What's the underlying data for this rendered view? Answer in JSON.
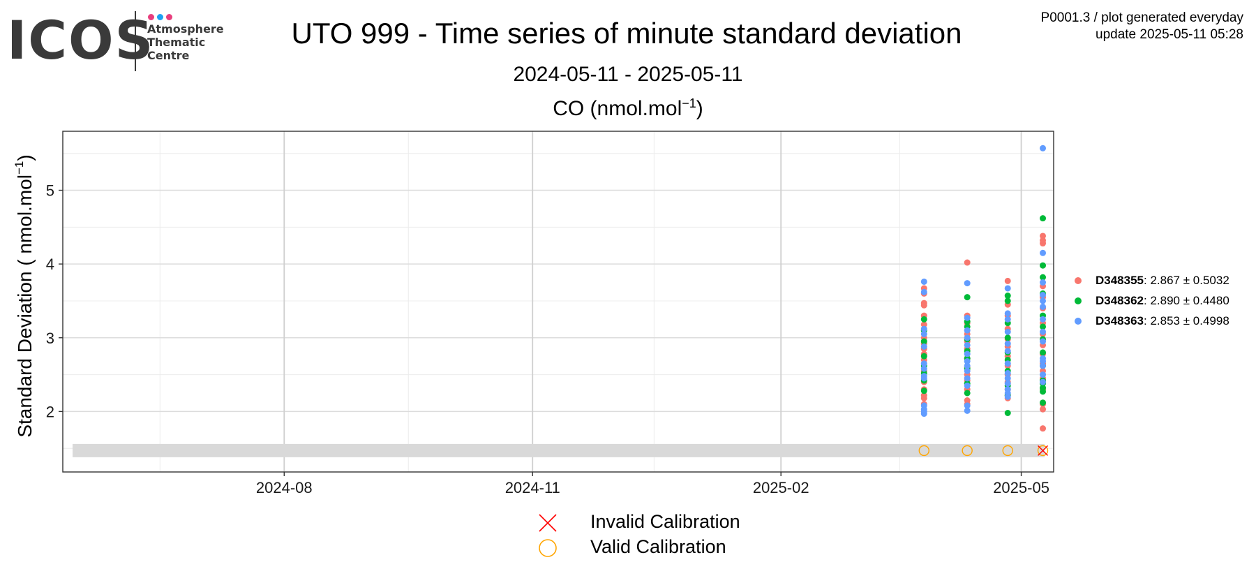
{
  "logo": {
    "wordmark": "ICOS",
    "lines": [
      "Atmosphere",
      "Thematic",
      "Centre"
    ],
    "dot_colors": [
      "#e83e7d",
      "#1da1f2",
      "#e83e7d"
    ]
  },
  "header": {
    "title": "UTO 999 - Time series of minute standard deviation",
    "subtitle": "2024-05-11 - 2025-05-11",
    "meta_line1": "P0001.3 / plot generated everyday",
    "meta_line2": "update  2025-05-11 05:28"
  },
  "chart_data": {
    "type": "scatter",
    "title_text": "CO (nmol.mol",
    "title_sup": "−1",
    "title_close": ")",
    "ylabel": "Standard Deviation ( nmol.mol",
    "ylabel_sup": "−1",
    "ylabel_close": ")",
    "xlim": [
      "2024-05-11",
      "2025-05-13"
    ],
    "ylim": [
      1.18,
      5.8
    ],
    "grid": true,
    "legend_placement": "right",
    "x_ticks": [
      "2024-08",
      "2024-11",
      "2025-02",
      "2025-05"
    ],
    "x_tick_dates": [
      "2024-08-01",
      "2024-11-01",
      "2025-02-01",
      "2025-05-01"
    ],
    "y_ticks": [
      2,
      3,
      4,
      5
    ],
    "calibration_band": [
      1.38,
      1.56
    ],
    "series": [
      {
        "name": "D348355",
        "stat": ": 2.867 ± 0.5032",
        "color": "#f8766d",
        "points": [
          [
            "2025-03-26",
            3.67
          ],
          [
            "2025-03-26",
            3.6
          ],
          [
            "2025-03-26",
            3.47
          ],
          [
            "2025-03-26",
            3.44
          ],
          [
            "2025-03-26",
            3.3
          ],
          [
            "2025-03-26",
            3.18
          ],
          [
            "2025-03-26",
            3.0
          ],
          [
            "2025-03-26",
            2.92
          ],
          [
            "2025-03-26",
            2.85
          ],
          [
            "2025-03-26",
            2.78
          ],
          [
            "2025-03-26",
            2.7
          ],
          [
            "2025-03-26",
            2.55
          ],
          [
            "2025-03-26",
            2.4
          ],
          [
            "2025-03-26",
            2.3
          ],
          [
            "2025-03-26",
            2.22
          ],
          [
            "2025-03-26",
            2.18
          ],
          [
            "2025-03-26",
            2.1
          ],
          [
            "2025-04-11",
            4.02
          ],
          [
            "2025-04-11",
            3.3
          ],
          [
            "2025-04-11",
            3.2
          ],
          [
            "2025-04-11",
            3.05
          ],
          [
            "2025-04-11",
            2.95
          ],
          [
            "2025-04-11",
            2.85
          ],
          [
            "2025-04-11",
            2.72
          ],
          [
            "2025-04-11",
            2.6
          ],
          [
            "2025-04-11",
            2.5
          ],
          [
            "2025-04-11",
            2.42
          ],
          [
            "2025-04-11",
            2.3
          ],
          [
            "2025-04-11",
            2.15
          ],
          [
            "2025-04-11",
            2.1
          ],
          [
            "2025-04-26",
            3.77
          ],
          [
            "2025-04-26",
            3.45
          ],
          [
            "2025-04-26",
            3.3
          ],
          [
            "2025-04-26",
            3.12
          ],
          [
            "2025-04-26",
            2.98
          ],
          [
            "2025-04-26",
            2.88
          ],
          [
            "2025-04-26",
            2.75
          ],
          [
            "2025-04-26",
            2.62
          ],
          [
            "2025-04-26",
            2.5
          ],
          [
            "2025-04-26",
            2.4
          ],
          [
            "2025-04-26",
            2.3
          ],
          [
            "2025-04-26",
            2.22
          ],
          [
            "2025-04-26",
            2.18
          ],
          [
            "2025-05-09",
            4.38
          ],
          [
            "2025-05-09",
            4.32
          ],
          [
            "2025-05-09",
            4.28
          ],
          [
            "2025-05-09",
            3.7
          ],
          [
            "2025-05-09",
            3.55
          ],
          [
            "2025-05-09",
            3.4
          ],
          [
            "2025-05-09",
            3.2
          ],
          [
            "2025-05-09",
            3.05
          ],
          [
            "2025-05-09",
            2.9
          ],
          [
            "2025-05-09",
            2.78
          ],
          [
            "2025-05-09",
            2.65
          ],
          [
            "2025-05-09",
            2.55
          ],
          [
            "2025-05-09",
            2.45
          ],
          [
            "2025-05-09",
            2.3
          ],
          [
            "2025-05-09",
            2.1
          ],
          [
            "2025-05-09",
            2.03
          ],
          [
            "2025-05-09",
            1.77
          ]
        ]
      },
      {
        "name": "D348362",
        "stat": ": 2.890 ± 0.4480",
        "color": "#00ba38",
        "points": [
          [
            "2025-03-26",
            3.25
          ],
          [
            "2025-03-26",
            3.1
          ],
          [
            "2025-03-26",
            2.95
          ],
          [
            "2025-03-26",
            2.75
          ],
          [
            "2025-03-26",
            2.62
          ],
          [
            "2025-03-26",
            2.52
          ],
          [
            "2025-03-26",
            2.42
          ],
          [
            "2025-03-26",
            2.28
          ],
          [
            "2025-04-11",
            3.55
          ],
          [
            "2025-04-11",
            3.22
          ],
          [
            "2025-04-11",
            3.15
          ],
          [
            "2025-04-11",
            2.98
          ],
          [
            "2025-04-11",
            2.82
          ],
          [
            "2025-04-11",
            2.72
          ],
          [
            "2025-04-11",
            2.58
          ],
          [
            "2025-04-11",
            2.38
          ],
          [
            "2025-04-11",
            2.25
          ],
          [
            "2025-04-26",
            3.57
          ],
          [
            "2025-04-26",
            3.5
          ],
          [
            "2025-04-26",
            3.2
          ],
          [
            "2025-04-26",
            3.0
          ],
          [
            "2025-04-26",
            2.8
          ],
          [
            "2025-04-26",
            2.7
          ],
          [
            "2025-04-26",
            2.55
          ],
          [
            "2025-04-26",
            2.35
          ],
          [
            "2025-04-26",
            2.22
          ],
          [
            "2025-04-26",
            1.98
          ],
          [
            "2025-05-09",
            4.62
          ],
          [
            "2025-05-09",
            3.98
          ],
          [
            "2025-05-09",
            3.82
          ],
          [
            "2025-05-09",
            3.6
          ],
          [
            "2025-05-09",
            3.3
          ],
          [
            "2025-05-09",
            3.15
          ],
          [
            "2025-05-09",
            2.98
          ],
          [
            "2025-05-09",
            2.8
          ],
          [
            "2025-05-09",
            2.62
          ],
          [
            "2025-05-09",
            2.42
          ],
          [
            "2025-05-09",
            2.38
          ],
          [
            "2025-05-09",
            2.32
          ],
          [
            "2025-05-09",
            2.27
          ],
          [
            "2025-05-09",
            2.12
          ]
        ]
      },
      {
        "name": "D348363",
        "stat": ": 2.853 ± 0.4998",
        "color": "#619cff",
        "points": [
          [
            "2025-03-26",
            3.76
          ],
          [
            "2025-03-26",
            3.62
          ],
          [
            "2025-03-26",
            3.12
          ],
          [
            "2025-03-26",
            3.05
          ],
          [
            "2025-03-26",
            2.88
          ],
          [
            "2025-03-26",
            2.65
          ],
          [
            "2025-03-26",
            2.58
          ],
          [
            "2025-03-26",
            2.48
          ],
          [
            "2025-03-26",
            2.45
          ],
          [
            "2025-03-26",
            2.08
          ],
          [
            "2025-03-26",
            2.03
          ],
          [
            "2025-03-26",
            2.0
          ],
          [
            "2025-03-26",
            1.97
          ],
          [
            "2025-04-11",
            3.74
          ],
          [
            "2025-04-11",
            3.27
          ],
          [
            "2025-04-11",
            3.1
          ],
          [
            "2025-04-11",
            3.0
          ],
          [
            "2025-04-11",
            2.9
          ],
          [
            "2025-04-11",
            2.78
          ],
          [
            "2025-04-11",
            2.68
          ],
          [
            "2025-04-11",
            2.62
          ],
          [
            "2025-04-11",
            2.55
          ],
          [
            "2025-04-11",
            2.45
          ],
          [
            "2025-04-11",
            2.35
          ],
          [
            "2025-04-11",
            2.08
          ],
          [
            "2025-04-11",
            2.01
          ],
          [
            "2025-04-26",
            3.67
          ],
          [
            "2025-04-26",
            3.33
          ],
          [
            "2025-04-26",
            3.25
          ],
          [
            "2025-04-26",
            3.08
          ],
          [
            "2025-04-26",
            2.92
          ],
          [
            "2025-04-26",
            2.82
          ],
          [
            "2025-04-26",
            2.65
          ],
          [
            "2025-04-26",
            2.52
          ],
          [
            "2025-04-26",
            2.45
          ],
          [
            "2025-04-26",
            2.38
          ],
          [
            "2025-04-26",
            2.3
          ],
          [
            "2025-04-26",
            2.25
          ],
          [
            "2025-04-26",
            2.2
          ],
          [
            "2025-05-09",
            5.57
          ],
          [
            "2025-05-09",
            4.15
          ],
          [
            "2025-05-09",
            3.75
          ],
          [
            "2025-05-09",
            3.58
          ],
          [
            "2025-05-09",
            3.5
          ],
          [
            "2025-05-09",
            3.42
          ],
          [
            "2025-05-09",
            3.25
          ],
          [
            "2025-05-09",
            3.08
          ],
          [
            "2025-05-09",
            2.95
          ],
          [
            "2025-05-09",
            2.72
          ],
          [
            "2025-05-09",
            2.68
          ],
          [
            "2025-05-09",
            2.62
          ],
          [
            "2025-05-09",
            2.5
          ],
          [
            "2025-05-09",
            2.4
          ]
        ]
      }
    ],
    "calibrations": [
      {
        "date": "2025-03-26",
        "y": 1.47,
        "status": "valid"
      },
      {
        "date": "2025-04-11",
        "y": 1.47,
        "status": "valid"
      },
      {
        "date": "2025-04-26",
        "y": 1.47,
        "status": "valid"
      },
      {
        "date": "2025-05-09",
        "y": 1.47,
        "status": "invalid"
      }
    ],
    "calibration_legend": [
      {
        "label": "Invalid Calibration",
        "color": "#ff0000",
        "shape": "cross"
      },
      {
        "label": "Valid Calibration",
        "color": "#ffa500",
        "shape": "circle"
      }
    ]
  }
}
